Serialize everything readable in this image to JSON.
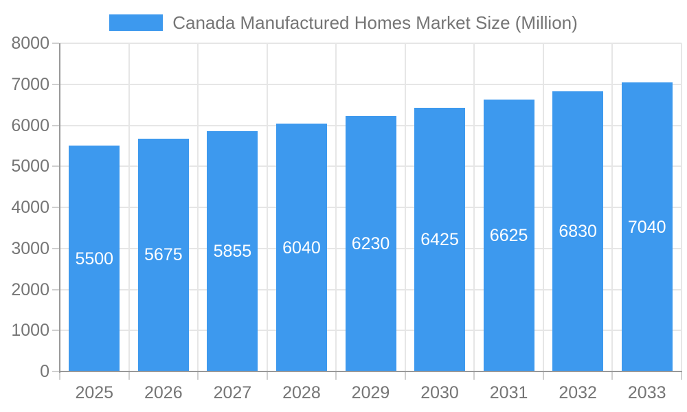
{
  "legend": {
    "label": "Canada Manufactured Homes Market Size (Million)"
  },
  "chart_data": {
    "type": "bar",
    "title": "Canada Manufactured Homes Market Size (Million)",
    "categories": [
      "2025",
      "2026",
      "2027",
      "2028",
      "2029",
      "2030",
      "2031",
      "2032",
      "2033"
    ],
    "values": [
      5500,
      5675,
      5855,
      6040,
      6230,
      6425,
      6625,
      6830,
      7040
    ],
    "value_labels": [
      "5500",
      "5675",
      "5855",
      "6040",
      "6230",
      "6425",
      "6625",
      "6830",
      "7040"
    ],
    "xlabel": "",
    "ylabel": "",
    "ylim": [
      0,
      8000
    ],
    "ytick_step": 1000,
    "ytick_labels": [
      "0",
      "1000",
      "2000",
      "3000",
      "4000",
      "5000",
      "6000",
      "7000",
      "8000"
    ],
    "grid": true,
    "legend_position": "top",
    "colors": {
      "bar": "#3d99ee",
      "value_label": "#ffffff",
      "axis_text": "#757575",
      "gridline": "#e6e6e6",
      "axis_line": "#999999",
      "tick": "#cfcfcf"
    }
  }
}
